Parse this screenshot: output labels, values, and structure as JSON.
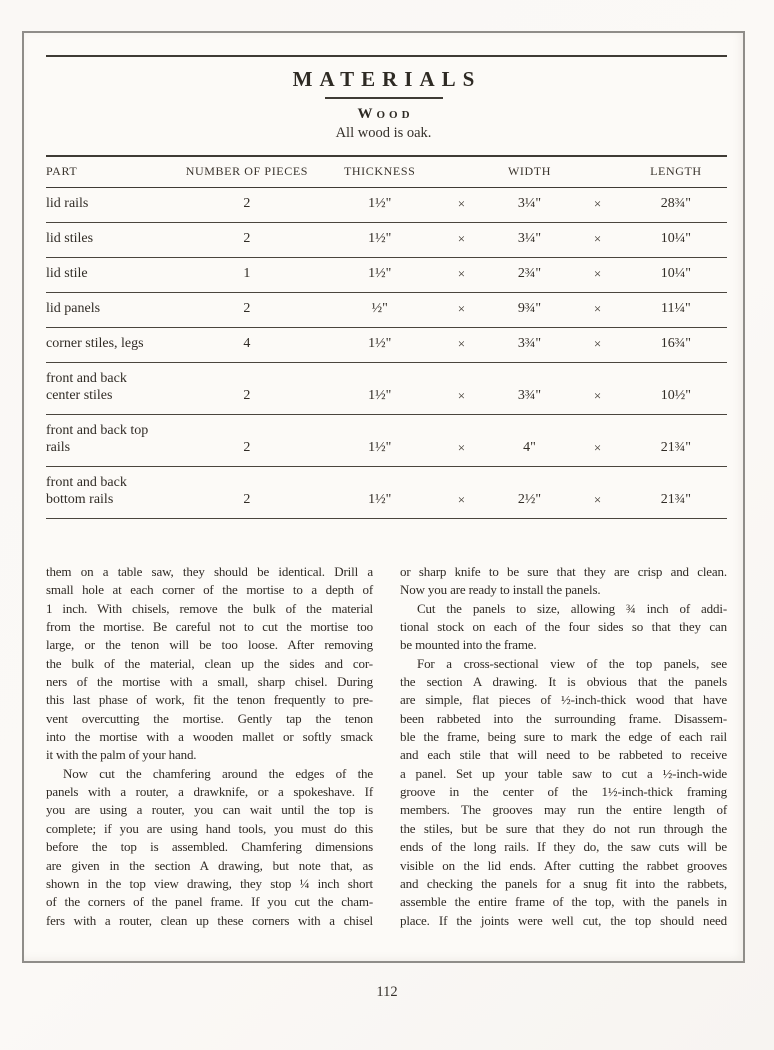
{
  "page": {
    "title": "MATERIALS",
    "section_heading": "Wood",
    "section_note": "All wood is oak.",
    "page_number": "112"
  },
  "table": {
    "headers": [
      "PART",
      "NUMBER OF PIECES",
      "THICKNESS",
      "WIDTH",
      "LENGTH"
    ],
    "multiply_symbol": "×",
    "rows": [
      {
        "part": "lid rails",
        "pieces": "2",
        "thickness": "1½\"",
        "width": "3¼\"",
        "length": "28¾\""
      },
      {
        "part": "lid stiles",
        "pieces": "2",
        "thickness": "1½\"",
        "width": "3¼\"",
        "length": "10¼\""
      },
      {
        "part": "lid stile",
        "pieces": "1",
        "thickness": "1½\"",
        "width": "2¾\"",
        "length": "10¼\""
      },
      {
        "part": "lid panels",
        "pieces": "2",
        "thickness": "½\"",
        "width": "9¾\"",
        "length": "11¼\""
      },
      {
        "part": "corner stiles, legs",
        "pieces": "4",
        "thickness": "1½\"",
        "width": "3¾\"",
        "length": "16¾\""
      },
      {
        "part": "front and back center stiles",
        "pieces": "2",
        "thickness": "1½\"",
        "width": "3¾\"",
        "length": "10½\""
      },
      {
        "part": "front and back top rails",
        "pieces": "2",
        "thickness": "1½\"",
        "width": "4\"",
        "length": "21¾\""
      },
      {
        "part": "front and back bottom rails",
        "pieces": "2",
        "thickness": "1½\"",
        "width": "2½\"",
        "length": "21¾\""
      }
    ]
  },
  "body": {
    "left_column_lines": [
      {
        "t": "them on a table saw, they should be identical. Drill a"
      },
      {
        "t": "small hole at each corner of the mortise to a depth of"
      },
      {
        "t": "1 inch. With chisels, remove the bulk of the material"
      },
      {
        "t": "from the mortise. Be careful not to cut the mortise too"
      },
      {
        "t": "large, or the tenon will be too loose. After removing"
      },
      {
        "t": "the bulk of the material, clean up the sides and cor-"
      },
      {
        "t": "ners of the mortise with a small, sharp chisel. During"
      },
      {
        "t": "this last phase of work, fit the tenon frequently to pre-"
      },
      {
        "t": "vent overcutting the mortise. Gently tap the tenon"
      },
      {
        "t": "into the mortise with a wooden mallet or softly smack"
      },
      {
        "t": "it with the palm of your hand.",
        "end": true
      },
      {
        "t": "Now cut the chamfering around the edges of the",
        "ind": true
      },
      {
        "t": "panels with a router, a drawknife, or a spokeshave. If"
      },
      {
        "t": "you are using a router, you can wait until the top is"
      },
      {
        "t": "complete; if you are using hand tools, you must do this"
      },
      {
        "t": "before the top is assembled. Chamfering dimensions"
      },
      {
        "t": "are given in the section A drawing, but note that, as"
      },
      {
        "t": "shown in the top view drawing, they stop ¼ inch short"
      },
      {
        "t": "of the corners of the panel frame. If you cut the cham-"
      },
      {
        "t": "fers with a router, clean up these corners with a chisel"
      }
    ],
    "right_column_lines": [
      {
        "t": "or sharp knife to be sure that they are crisp and clean."
      },
      {
        "t": "Now you are ready to install the panels.",
        "end": true
      },
      {
        "t": "Cut the panels to size, allowing ¾ inch of addi-",
        "ind": true
      },
      {
        "t": "tional stock on each of the four sides so that they can"
      },
      {
        "t": "be mounted into the frame.",
        "end": true
      },
      {
        "t": "For a cross-sectional view of the top panels, see",
        "ind": true
      },
      {
        "t": "the section A drawing. It is obvious that the panels"
      },
      {
        "t": "are simple, flat pieces of ½-inch-thick wood that have"
      },
      {
        "t": "been rabbeted into the surrounding frame. Disassem-"
      },
      {
        "t": "ble the frame, being sure to mark the edge of each rail"
      },
      {
        "t": "and each stile that will need to be rabbeted to receive"
      },
      {
        "t": "a panel. Set up your table saw to cut a ½-inch-wide"
      },
      {
        "t": "groove in the center of the 1½-inch-thick framing"
      },
      {
        "t": "members. The grooves may run the entire length of"
      },
      {
        "t": "the stiles, but be sure that they do not run through the"
      },
      {
        "t": "ends of the long rails. If they do, the saw cuts will be"
      },
      {
        "t": "visible on the lid ends. After cutting the rabbet grooves"
      },
      {
        "t": "and checking the panels for a snug fit into the rabbets,"
      },
      {
        "t": "assemble the entire frame of the top, with the panels in"
      },
      {
        "t": "place. If the joints were well cut, the top should need"
      }
    ]
  }
}
